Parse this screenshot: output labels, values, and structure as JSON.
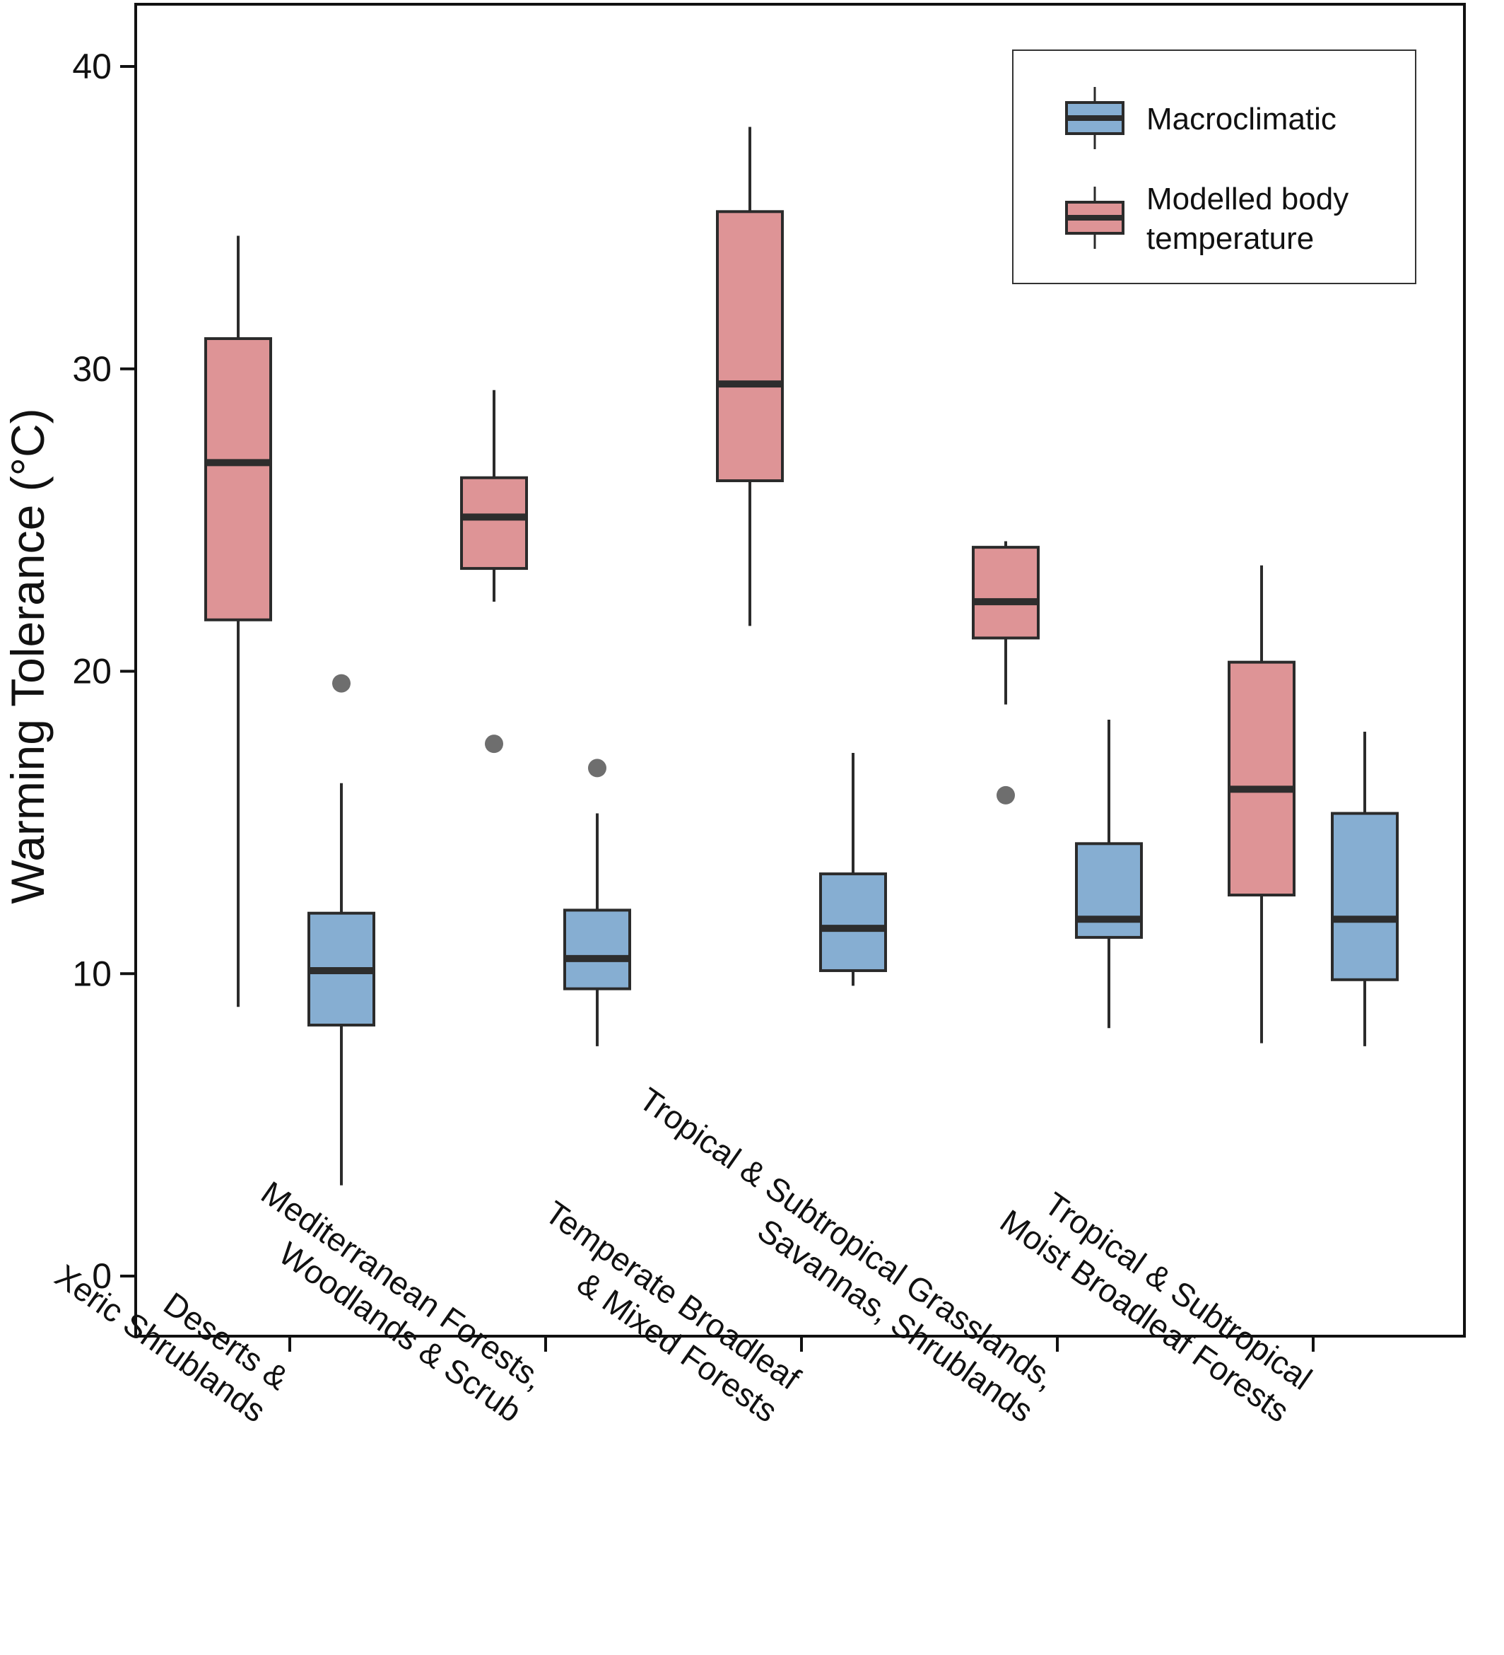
{
  "chart_data": {
    "type": "box",
    "ylabel": "Warming Tolerance (°C)",
    "ylim": [
      -2,
      42
    ],
    "yticks": [
      0,
      10,
      20,
      30,
      40
    ],
    "grid": false,
    "legend_position": "top-right",
    "categories": [
      [
        "Deserts &",
        "Xeric Shrublands"
      ],
      [
        "Mediterranean Forests,",
        "Woodlands & Scrub"
      ],
      [
        "Temperate Broadleaf",
        "& Mixed Forests"
      ],
      [
        "Tropical & Subtropical Grasslands,",
        "Savannas, Shrublands"
      ],
      [
        "Tropical & Subtropical",
        "Moist Broadleaf Forests"
      ]
    ],
    "series": [
      {
        "name": "Modelled body temperature",
        "legend_lines": [
          "Modelled body",
          "temperature"
        ],
        "color": "#de9496",
        "boxes": [
          {
            "whisker_low": 8.9,
            "q1": 21.7,
            "median": 26.9,
            "q3": 31.0,
            "whisker_high": 34.4,
            "outliers": []
          },
          {
            "whisker_low": 22.3,
            "q1": 23.4,
            "median": 25.1,
            "q3": 26.4,
            "whisker_high": 29.3,
            "outliers": [
              17.6
            ]
          },
          {
            "whisker_low": 21.5,
            "q1": 26.3,
            "median": 29.5,
            "q3": 35.2,
            "whisker_high": 38.0,
            "outliers": []
          },
          {
            "whisker_low": 18.9,
            "q1": 21.1,
            "median": 22.3,
            "q3": 24.1,
            "whisker_high": 24.3,
            "outliers": [
              15.9
            ]
          },
          {
            "whisker_low": 7.7,
            "q1": 12.6,
            "median": 16.1,
            "q3": 20.3,
            "whisker_high": 23.5,
            "outliers": []
          }
        ]
      },
      {
        "name": "Macroclimatic",
        "legend_lines": [
          "Macroclimatic"
        ],
        "color": "#86aed2",
        "boxes": [
          {
            "whisker_low": 3.0,
            "q1": 8.3,
            "median": 10.1,
            "q3": 12.0,
            "whisker_high": 16.3,
            "outliers": [
              19.6
            ]
          },
          {
            "whisker_low": 7.6,
            "q1": 9.5,
            "median": 10.5,
            "q3": 12.1,
            "whisker_high": 15.3,
            "outliers": [
              16.8
            ]
          },
          {
            "whisker_low": 9.6,
            "q1": 10.1,
            "median": 11.5,
            "q3": 13.3,
            "whisker_high": 17.3,
            "outliers": []
          },
          {
            "whisker_low": 8.2,
            "q1": 11.2,
            "median": 11.8,
            "q3": 14.3,
            "whisker_high": 18.4,
            "outliers": []
          },
          {
            "whisker_low": 7.6,
            "q1": 9.8,
            "median": 11.8,
            "q3": 15.3,
            "whisker_high": 18.0,
            "outliers": []
          }
        ]
      }
    ],
    "outlier_color": "#6e6e6e",
    "line_color": "#2b2b2b",
    "median_color": "#2d2d2d"
  }
}
